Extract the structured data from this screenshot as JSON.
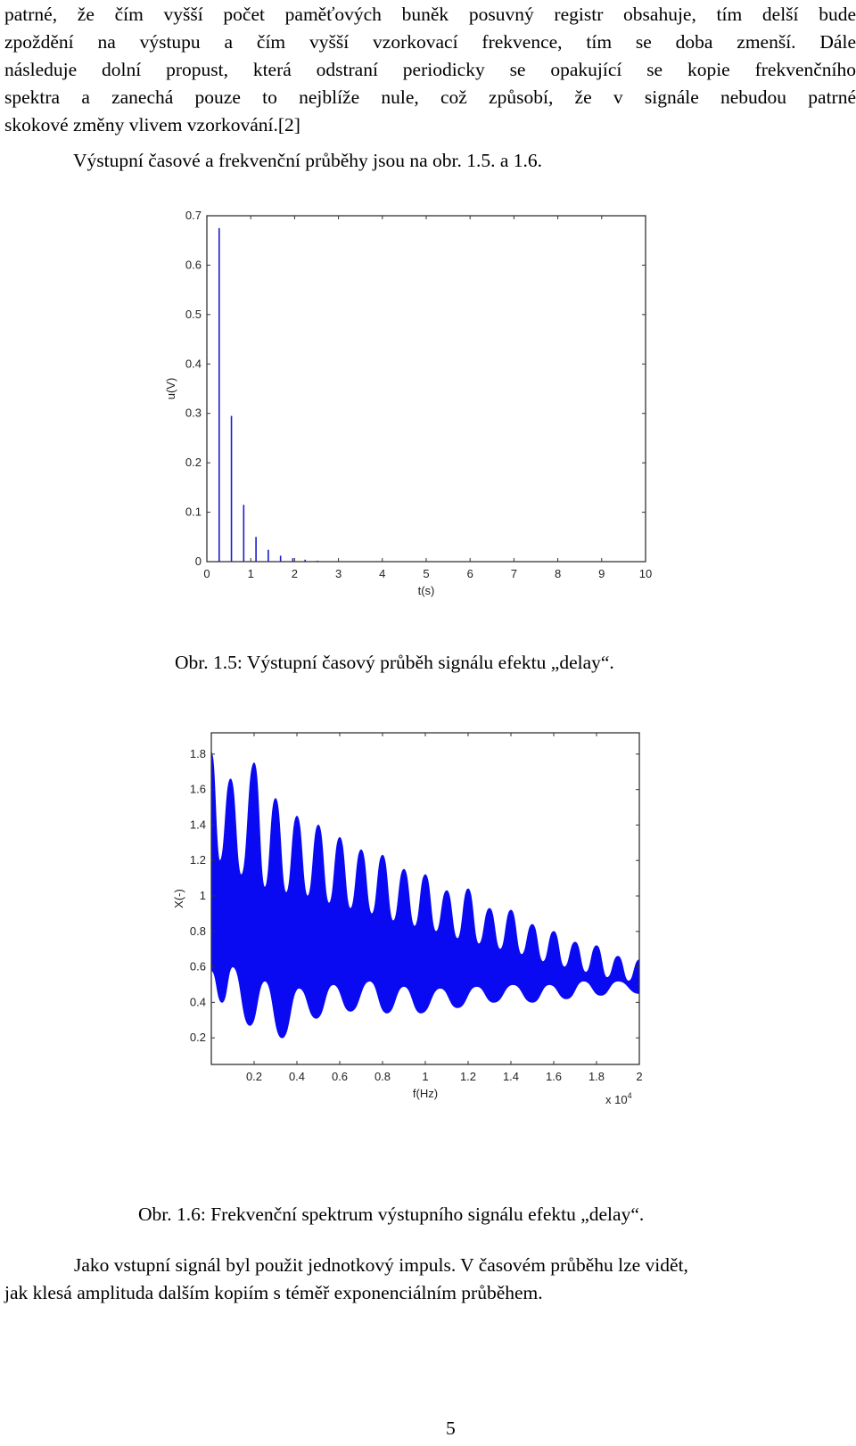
{
  "paragraph_top": {
    "lines": [
      "patrné, že čím vyšší počet paměťových buněk posuvný registr obsahuje, tím delší bude",
      "zpoždění na výstupu a čím vyšší vzorkovací frekvence, tím se doba zmenší. Dále",
      "následuje dolní propust, která odstraní periodicky se opakující se kopie frekvenčního",
      "spektra a zanechá pouze to nejblíže nule, což způsobí, že v signále nebudou patrné",
      "skokové změny vlivem vzorkování.[2]"
    ]
  },
  "intro_line": "Výstupní časové a frekvenční průběhy jsou na obr. 1.5. a 1.6.",
  "figure1": {
    "caption": "Obr. 1.5: Výstupní časový průběh signálu efektu „delay“.",
    "chart_data": {
      "type": "stem",
      "xlabel": "t(s)",
      "ylabel": "u(V)",
      "xlim": [
        0,
        10
      ],
      "ylim": [
        0,
        0.7
      ],
      "xticks": [
        "0",
        "1",
        "2",
        "3",
        "4",
        "5",
        "6",
        "7",
        "8",
        "9",
        "10"
      ],
      "yticks": [
        "0",
        "0.1",
        "0.2",
        "0.3",
        "0.4",
        "0.5",
        "0.6",
        "0.7"
      ],
      "color": "#1c1ccc",
      "x": [
        0.28,
        0.56,
        0.84,
        1.12,
        1.4,
        1.68,
        1.96,
        2.24,
        2.52
      ],
      "values": [
        0.675,
        0.295,
        0.115,
        0.05,
        0.024,
        0.012,
        0.007,
        0.004,
        0.002
      ]
    }
  },
  "figure2": {
    "caption": "Obr. 1.6: Frekvenční spektrum výstupního signálu efektu „delay“.",
    "chart_data": {
      "type": "area",
      "xlabel": "f(Hz)",
      "ylabel": "X(-)",
      "x_multiplier": "x 10",
      "x_multiplier_exp": "4",
      "xlim": [
        0,
        2.0
      ],
      "ylim": [
        0.05,
        1.92
      ],
      "xticks": [
        "0.2",
        "0.4",
        "0.6",
        "0.8",
        "1",
        "1.2",
        "1.4",
        "1.6",
        "1.8",
        "2"
      ],
      "yticks": [
        "0.2",
        "0.4",
        "0.6",
        "0.8",
        "1",
        "1.2",
        "1.4",
        "1.6",
        "1.8"
      ],
      "color": "#0a0af2",
      "peaks_upper": [
        [
          0.0,
          1.81
        ],
        [
          0.09,
          1.66
        ],
        [
          0.2,
          1.75
        ],
        [
          0.3,
          1.55
        ],
        [
          0.4,
          1.45
        ],
        [
          0.5,
          1.4
        ],
        [
          0.6,
          1.33
        ],
        [
          0.7,
          1.26
        ],
        [
          0.8,
          1.23
        ],
        [
          0.9,
          1.15
        ],
        [
          1.0,
          1.12
        ],
        [
          1.1,
          1.03
        ],
        [
          1.2,
          1.04
        ],
        [
          1.3,
          0.93
        ],
        [
          1.4,
          0.92
        ],
        [
          1.5,
          0.84
        ],
        [
          1.6,
          0.8
        ],
        [
          1.7,
          0.74
        ],
        [
          1.8,
          0.72
        ],
        [
          1.9,
          0.66
        ],
        [
          2.0,
          0.64
        ]
      ],
      "valleys_upper": [
        [
          0.04,
          1.2
        ],
        [
          0.14,
          1.12
        ],
        [
          0.25,
          1.05
        ],
        [
          0.35,
          1.02
        ],
        [
          0.45,
          1.0
        ],
        [
          0.55,
          0.96
        ],
        [
          0.65,
          0.93
        ],
        [
          0.75,
          0.9
        ],
        [
          0.85,
          0.86
        ],
        [
          0.95,
          0.83
        ],
        [
          1.05,
          0.8
        ],
        [
          1.15,
          0.76
        ],
        [
          1.25,
          0.73
        ],
        [
          1.35,
          0.7
        ],
        [
          1.45,
          0.67
        ],
        [
          1.55,
          0.63
        ],
        [
          1.65,
          0.6
        ],
        [
          1.75,
          0.57
        ],
        [
          1.85,
          0.54
        ],
        [
          1.95,
          0.52
        ]
      ],
      "dips_lower": [
        [
          0.0,
          0.58
        ],
        [
          0.05,
          0.4
        ],
        [
          0.1,
          0.6
        ],
        [
          0.18,
          0.27
        ],
        [
          0.25,
          0.52
        ],
        [
          0.33,
          0.2
        ],
        [
          0.41,
          0.48
        ],
        [
          0.49,
          0.31
        ],
        [
          0.57,
          0.5
        ],
        [
          0.65,
          0.35
        ],
        [
          0.74,
          0.52
        ],
        [
          0.82,
          0.34
        ],
        [
          0.9,
          0.49
        ],
        [
          0.98,
          0.34
        ],
        [
          1.07,
          0.48
        ],
        [
          1.15,
          0.37
        ],
        [
          1.24,
          0.49
        ],
        [
          1.32,
          0.4
        ],
        [
          1.41,
          0.5
        ],
        [
          1.5,
          0.4
        ],
        [
          1.58,
          0.5
        ],
        [
          1.66,
          0.42
        ],
        [
          1.74,
          0.52
        ],
        [
          1.82,
          0.44
        ],
        [
          1.9,
          0.52
        ],
        [
          2.0,
          0.45
        ]
      ]
    }
  },
  "paragraph_bottom": {
    "lines": [
      "Jako vstupní signál byl použit jednotkový impuls. V časovém průběhu lze vidět,",
      "jak klesá amplituda dalším kopiím s téměř exponenciálním průběhem."
    ]
  },
  "page_number": "5"
}
